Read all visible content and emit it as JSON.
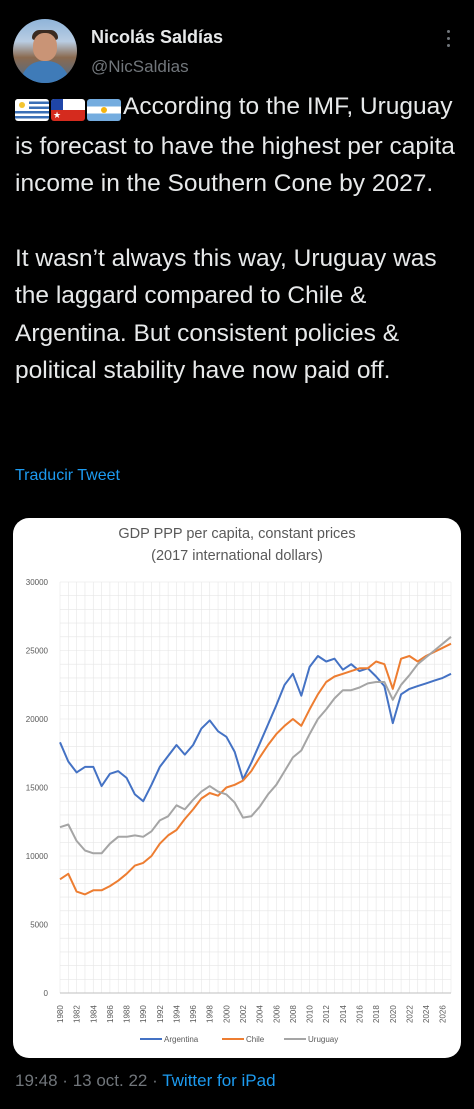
{
  "author": {
    "name": "Nicolás Saldías",
    "handle": "@NicSaldias",
    "avatar_icon": "profile-avatar"
  },
  "tweet": {
    "flags": [
      "uruguay-flag-emoji",
      "chile-flag-emoji",
      "argentina-flag-emoji"
    ],
    "paragraph1": "According to the IMF, Uruguay is forecast to have the highest per capita income in the Southern Cone by 2027.",
    "paragraph2": "It wasn’t always this way, Uruguay was the laggard compared to Chile & Argentina. But consistent policies & political stability have now paid off.",
    "translate_label": "Traducir Tweet"
  },
  "meta": {
    "time": "19:48",
    "date": "13 oct. 22",
    "source": "Twitter for iPad",
    "separator": "·"
  },
  "colors": {
    "background": "#000000",
    "link": "#1d9bf0",
    "text": "#e7e9ea",
    "muted": "#71767b"
  },
  "chart_data": {
    "type": "line",
    "title_line1": "GDP PPP per capita, constant prices",
    "title_line2": "(2017 international dollars)",
    "ylim": [
      0,
      30000
    ],
    "yticks": [
      "0",
      "5000",
      "10000",
      "15000",
      "20000",
      "25000",
      "30000"
    ],
    "ytick_values": [
      0,
      5000,
      10000,
      15000,
      20000,
      25000,
      30000
    ],
    "xlim": [
      1980,
      2027
    ],
    "xticks": [
      "1980",
      "1982",
      "1984",
      "1986",
      "1988",
      "1990",
      "1992",
      "1994",
      "1996",
      "1998",
      "2000",
      "2002",
      "2004",
      "2006",
      "2008",
      "2010",
      "2012",
      "2014",
      "2016",
      "2018",
      "2020",
      "2022",
      "2024",
      "2026"
    ],
    "xtick_values": [
      1980,
      1982,
      1984,
      1986,
      1988,
      1990,
      1992,
      1994,
      1996,
      1998,
      2000,
      2002,
      2004,
      2006,
      2008,
      2010,
      2012,
      2014,
      2016,
      2018,
      2020,
      2022,
      2024,
      2026
    ],
    "grid": true,
    "legend_position": "bottom",
    "x": [
      1980,
      1981,
      1982,
      1983,
      1984,
      1985,
      1986,
      1987,
      1988,
      1989,
      1990,
      1991,
      1992,
      1993,
      1994,
      1995,
      1996,
      1997,
      1998,
      1999,
      2000,
      2001,
      2002,
      2003,
      2004,
      2005,
      2006,
      2007,
      2008,
      2009,
      2010,
      2011,
      2012,
      2013,
      2014,
      2015,
      2016,
      2017,
      2018,
      2019,
      2020,
      2021,
      2022,
      2023,
      2024,
      2025,
      2026,
      2027
    ],
    "series": [
      {
        "name": "Argentina",
        "color": "#4472c4",
        "values": [
          18300,
          16900,
          16100,
          16500,
          16500,
          15100,
          16000,
          16200,
          15700,
          14500,
          14000,
          15200,
          16500,
          17300,
          18100,
          17400,
          18100,
          19300,
          19900,
          19100,
          18700,
          17600,
          15600,
          16800,
          18200,
          19600,
          21000,
          22500,
          23300,
          21700,
          23800,
          24600,
          24200,
          24400,
          23600,
          24000,
          23500,
          23700,
          23100,
          22400,
          19700,
          21800,
          22200,
          22400,
          22600,
          22800,
          23000,
          23300
        ]
      },
      {
        "name": "Chile",
        "color": "#ed7d31",
        "values": [
          8300,
          8700,
          7400,
          7200,
          7500,
          7500,
          7800,
          8200,
          8700,
          9300,
          9500,
          10000,
          10900,
          11500,
          11900,
          12700,
          13400,
          14200,
          14600,
          14400,
          15000,
          15200,
          15500,
          16200,
          17200,
          18100,
          18900,
          19500,
          20000,
          19500,
          20700,
          21800,
          22700,
          23100,
          23300,
          23500,
          23700,
          23700,
          24200,
          24000,
          22200,
          24400,
          24600,
          24200,
          24600,
          24900,
          25200,
          25500
        ]
      },
      {
        "name": "Uruguay",
        "color": "#a5a5a5",
        "values": [
          12100,
          12300,
          11100,
          10400,
          10200,
          10200,
          10900,
          11400,
          11400,
          11500,
          11400,
          11800,
          12600,
          12900,
          13700,
          13400,
          14100,
          14700,
          15100,
          14700,
          14500,
          13900,
          12800,
          12900,
          13600,
          14500,
          15200,
          16200,
          17200,
          17700,
          18900,
          20000,
          20700,
          21500,
          22100,
          22100,
          22300,
          22600,
          22700,
          22700,
          21400,
          22500,
          23200,
          24000,
          24500,
          25000,
          25500,
          26000
        ]
      }
    ]
  }
}
